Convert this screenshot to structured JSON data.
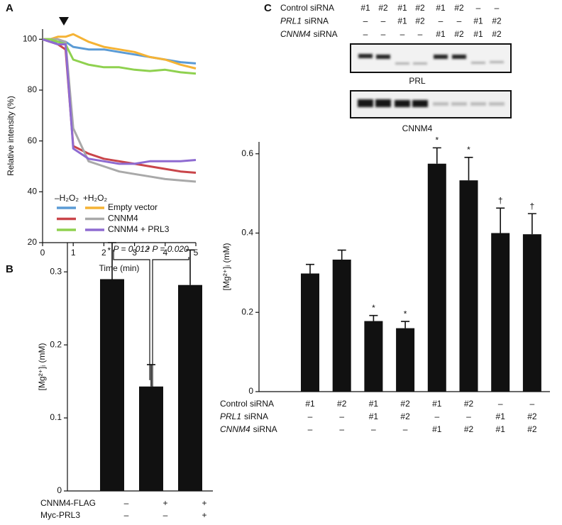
{
  "chart_data": [
    {
      "panel": "A",
      "type": "line",
      "xlabel": "Time (min)",
      "ylabel": "Relative intensity (%)",
      "x": [
        0,
        0.25,
        0.5,
        0.75,
        1,
        1.5,
        2,
        2.5,
        3,
        3.5,
        4,
        4.5,
        5
      ],
      "xlim": [
        0,
        5
      ],
      "xticks": [
        0,
        1,
        2,
        3,
        4,
        5
      ],
      "ylim": [
        20,
        104
      ],
      "yticks": [
        20,
        40,
        60,
        80,
        100
      ],
      "series": [
        {
          "name": "Empty vector",
          "condition": "–H₂O₂",
          "color": "#5b9bd5",
          "values": [
            100,
            99,
            99,
            99,
            97,
            96,
            96,
            95,
            94,
            93,
            92,
            91,
            90.5
          ]
        },
        {
          "name": "Empty vector",
          "condition": "+H₂O₂",
          "color": "#f5b335",
          "values": [
            100,
            100,
            101,
            101,
            102,
            99,
            97,
            96,
            95,
            93,
            92,
            90,
            88.5
          ]
        },
        {
          "name": "CNNM4",
          "condition": "–H₂O₂",
          "color": "#c9454a",
          "values": [
            100,
            99,
            98,
            96,
            58,
            55,
            53,
            52,
            51,
            50,
            49,
            48,
            47.5
          ]
        },
        {
          "name": "CNNM4",
          "condition": "+H₂O₂",
          "color": "#a9a9a9",
          "values": [
            100,
            100,
            100,
            99,
            65,
            52,
            50,
            48,
            47,
            46,
            45,
            44.5,
            44
          ]
        },
        {
          "name": "CNNM4 + PRL3",
          "condition": "–H₂O₂",
          "color": "#8fd14f",
          "values": [
            100,
            100,
            99,
            98,
            92,
            90,
            89,
            89,
            88,
            87.5,
            88,
            87,
            86.5
          ]
        },
        {
          "name": "CNNM4 + PRL3",
          "condition": "+H₂O₂",
          "color": "#8e6bd1",
          "values": [
            100,
            99,
            98,
            98,
            57,
            53,
            52,
            51,
            51,
            52,
            52,
            52,
            52.5
          ]
        }
      ]
    },
    {
      "panel": "B",
      "type": "bar",
      "ylabel": "[Mg²⁺]ᵢ (mM)",
      "color": "#111111",
      "categories": [
        null,
        null,
        null
      ],
      "values": [
        0.29,
        0.143,
        0.282
      ],
      "errors": [
        0.05,
        0.03,
        0.048
      ],
      "ylim": [
        0,
        0.34
      ],
      "yticks": [
        0,
        0.1,
        0.2,
        0.3
      ],
      "significance": [
        {
          "star": "*",
          "label": "P = 0.012"
        },
        {
          "star": "*",
          "label": "P = 0.020"
        }
      ],
      "table": [
        {
          "label": "CNNM4-FLAG",
          "cells": [
            "–",
            "+",
            "+"
          ]
        },
        {
          "label": "Myc-PRL3",
          "cells": [
            "–",
            "–",
            "+"
          ]
        }
      ]
    },
    {
      "panel": "C",
      "type": "bar",
      "ylabel": "[Mg²⁺]ᵢ (mM)",
      "color": "#111111",
      "categories": [
        null,
        null,
        null,
        null,
        null,
        null,
        null,
        null
      ],
      "values": [
        0.298,
        0.333,
        0.178,
        0.16,
        0.575,
        0.533,
        0.4,
        0.397
      ],
      "errors": [
        0.023,
        0.024,
        0.014,
        0.017,
        0.04,
        0.058,
        0.063,
        0.052
      ],
      "bar_labels": [
        null,
        null,
        "*",
        "*",
        "*",
        "*",
        "†",
        "†"
      ],
      "ylim": [
        0,
        0.63
      ],
      "yticks": [
        0,
        0.2,
        0.4,
        0.6
      ],
      "blot_labels": [
        "PRL",
        "CNNM4"
      ],
      "table": [
        {
          "label": "Control siRNA",
          "cells": [
            "#1",
            "#2",
            "#1",
            "#2",
            "#1",
            "#2",
            "–",
            "–"
          ]
        },
        {
          "label_italic": "PRL1",
          "label": "siRNA",
          "cells": [
            "–",
            "–",
            "#1",
            "#2",
            "–",
            "–",
            "#1",
            "#2"
          ]
        },
        {
          "label_italic": "CNNM4",
          "label": "siRNA",
          "cells": [
            "–",
            "–",
            "–",
            "–",
            "#1",
            "#2",
            "#1",
            "#2"
          ]
        }
      ]
    }
  ]
}
